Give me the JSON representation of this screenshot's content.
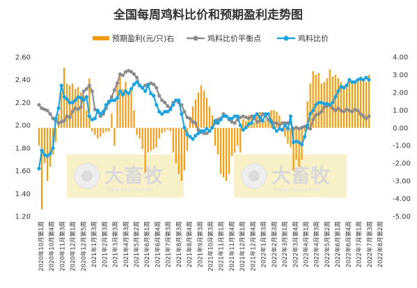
{
  "chart_data": {
    "type": "bar+line",
    "title": "全国每周鸡料比价和预期盈利走势图",
    "legend": [
      "预期盈利(元/只)右",
      "鸡料比价平衡点",
      "鸡料比价"
    ],
    "legend_position": "top-center",
    "colors": {
      "bar": "#f39c12",
      "balance": "#8c8c8c",
      "ratio": "#1aa3df"
    },
    "grid": false,
    "y_left": {
      "min": 1.2,
      "max": 2.6,
      "step": 0.2,
      "ticks": [
        "1.20",
        "1.40",
        "1.60",
        "1.80",
        "2.00",
        "2.20",
        "2.40",
        "2.60"
      ]
    },
    "y_right": {
      "min": -5.0,
      "max": 4.0,
      "step": 1.0,
      "ticks": [
        "-5.00",
        "-4.00",
        "-3.00",
        "-2.00",
        "-1.00",
        "0.00",
        "1.00",
        "2.00",
        "3.00",
        "4.00"
      ]
    },
    "x_labels": [
      "2020年10月第1周",
      "2020年10月第4周",
      "2020年11月第3周",
      "2020年12月第1周",
      "2020年12月第5周",
      "2021年1月第3周",
      "2021年2月第3周",
      "2021年3月第3周",
      "2021年4月第3周",
      "2021年5月第2周",
      "2021年6月第1周",
      "2021年6月第4周",
      "2021年7月第3周",
      "2021年8月第3周",
      "2021年8月第4周",
      "2021年9月第3周",
      "2021年10月第3周",
      "2021年11月第1周",
      "2021年11月第4周",
      "2021年12月第1周",
      "2021年12月第4周",
      "2022年1月第3周",
      "2022年2月第3周",
      "2022年3月第1周",
      "2022年3月第4周",
      "2022年4月第1周",
      "2022年4月第3周",
      "2022年5月第2周",
      "2022年6月第1周",
      "2022年6月第4周",
      "2022年7月第1周",
      "2022年7月第3周",
      "2022年8月第2周"
    ],
    "profit": [
      -1.0,
      -4.6,
      -2.0,
      -3.0,
      -2.2,
      -1.5,
      -0.8,
      0.8,
      2.0,
      3.4,
      2.5,
      2.4,
      2.5,
      2.2,
      2.3,
      2.0,
      1.8,
      1.0,
      2.8,
      -0.2,
      -0.4,
      -0.6,
      -0.5,
      -0.3,
      -0.2,
      -0.2,
      0.8,
      -1.0,
      2.6,
      3.0,
      2.2,
      2.6,
      2.0,
      2.3,
      1.0,
      -0.4,
      -0.6,
      -1.2,
      -2.5,
      -1.4,
      -1.3,
      -1.2,
      -1.1,
      -0.6,
      -0.3,
      -0.2,
      -0.1,
      -0.2,
      -1.4,
      -2.0,
      -2.6,
      -3.0,
      -2.4,
      -1.3,
      0.6,
      1.2,
      1.6,
      2.0,
      2.4,
      2.1,
      1.7,
      1.2,
      0.7,
      -1.0,
      -1.5,
      -2.6,
      -2.8,
      -3.0,
      -2.6,
      -1.6,
      -1.4,
      -1.0,
      -1.4,
      0.5,
      0.4,
      0.7,
      0.6,
      0.3,
      0.8,
      0.9,
      0.5,
      0.4,
      0.4,
      1.0,
      1.0,
      0.9,
      0.7,
      -0.1,
      -0.5,
      -0.9,
      -1.1,
      -2.4,
      -1.8,
      -2.2,
      -1.8,
      -0.2,
      1.5,
      2.5,
      3.2,
      3.0,
      3.1,
      2.5,
      2.6,
      2.8,
      3.3,
      2.9,
      3.0,
      2.8,
      2.6,
      2.4,
      2.5,
      2.8,
      2.5,
      2.5,
      2.6,
      2.9,
      2.8,
      2.6,
      3.0
    ],
    "balance": [
      2.18,
      2.15,
      2.14,
      2.13,
      2.1,
      2.06,
      2.04,
      2.02,
      2.03,
      2.04,
      2.08,
      2.07,
      2.12,
      2.15,
      2.14,
      2.16,
      2.3,
      2.32,
      2.35,
      2.3,
      2.14,
      2.12,
      2.08,
      2.1,
      2.15,
      2.2,
      2.25,
      2.31,
      2.37,
      2.45,
      2.44,
      2.47,
      2.48,
      2.47,
      2.45,
      2.42,
      2.35,
      2.33,
      2.35,
      2.36,
      2.37,
      2.36,
      2.33,
      2.26,
      2.22,
      2.2,
      2.17,
      2.15,
      2.2,
      2.22,
      2.2,
      2.18,
      2.12,
      2.07,
      2.06,
      2.03,
      2.02,
      1.96,
      1.94,
      1.93,
      1.93,
      1.95,
      1.98,
      2.02,
      2.05,
      2.06,
      2.1,
      2.08,
      2.05,
      2.03,
      2.02,
      2.05,
      2.07,
      2.08,
      2.07,
      2.06,
      2.08,
      2.06,
      2.03,
      2.04,
      2.1,
      2.08,
      2.05,
      2.04,
      2.02,
      2.02,
      2.0,
      2.02,
      2.02,
      2.02,
      2.02,
      1.97,
      1.98,
      1.97,
      1.98,
      1.99,
      1.98,
      1.97,
      2.05,
      2.09,
      2.1,
      2.12,
      2.16,
      2.17,
      2.18,
      2.15,
      2.13,
      2.15,
      2.13,
      2.12,
      2.14,
      2.13,
      2.12,
      2.14,
      2.13,
      2.1,
      2.08,
      2.06,
      2.08
    ],
    "ratio": [
      1.62,
      1.78,
      1.74,
      1.73,
      1.75,
      1.8,
      2.06,
      2.15,
      2.35,
      2.25,
      2.23,
      2.2,
      2.2,
      2.22,
      2.25,
      2.24,
      2.22,
      2.25,
      2.08,
      2.05,
      2.06,
      2.13,
      2.1,
      2.12,
      2.18,
      2.21,
      2.22,
      2.22,
      2.24,
      2.3,
      2.27,
      2.3,
      2.28,
      2.32,
      2.36,
      2.38,
      2.35,
      2.33,
      2.3,
      2.35,
      2.28,
      2.26,
      2.18,
      2.12,
      2.1,
      2.12,
      2.12,
      2.14,
      2.18,
      2.22,
      2.22,
      2.1,
      1.98,
      1.92,
      1.9,
      1.88,
      1.91,
      1.93,
      1.95,
      1.95,
      1.97,
      1.95,
      1.98,
      2.04,
      2.02,
      2.05,
      2.08,
      2.08,
      2.06,
      2.06,
      2.08,
      2.08,
      2.0,
      1.96,
      1.98,
      2.01,
      2.02,
      2.08,
      2.1,
      2.07,
      2.04,
      2.1,
      2.1,
      2.03,
      1.98,
      1.95,
      1.97,
      1.96,
      2.0,
      1.97,
      2.08,
      1.85,
      1.86,
      1.85,
      1.83,
      1.9,
      2.0,
      2.1,
      2.13,
      2.18,
      2.2,
      2.2,
      2.19,
      2.19,
      2.18,
      2.2,
      2.25,
      2.3,
      2.34,
      2.33,
      2.35,
      2.4,
      2.38,
      2.38,
      2.4,
      2.41,
      2.4,
      2.42,
      2.4
    ]
  },
  "watermark": {
    "text": "大畜牧",
    "sub": "www.dxumu.com"
  }
}
